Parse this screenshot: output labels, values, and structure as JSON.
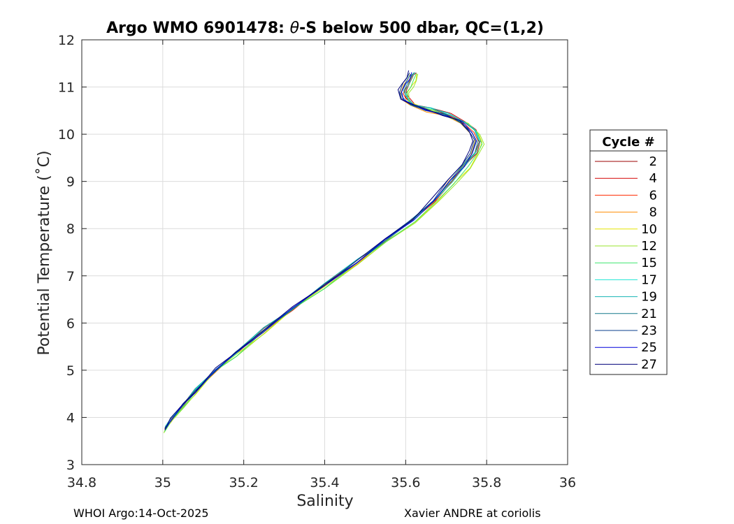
{
  "chart_data": {
    "type": "line",
    "title_prefix": "Argo WMO 6901478: ",
    "title_symbol": "θ",
    "title_suffix": "-S below 500 dbar,  QC=(1,2)",
    "xlabel": "Salinity",
    "ylabel": "Potential Temperature (˚C)",
    "xlim": [
      34.8,
      36
    ],
    "ylim": [
      3,
      12
    ],
    "xticks": [
      "34.8",
      "35",
      "35.2",
      "35.4",
      "35.6",
      "35.8",
      "36"
    ],
    "yticks": [
      "3",
      "4",
      "5",
      "6",
      "7",
      "8",
      "9",
      "10",
      "11",
      "12"
    ],
    "grid": true,
    "legend": {
      "title": "Cycle #",
      "placement": "outside-right"
    },
    "base_profile": [
      [
        35.005,
        3.75
      ],
      [
        35.02,
        3.95
      ],
      [
        35.05,
        4.25
      ],
      [
        35.08,
        4.55
      ],
      [
        35.13,
        5.0
      ],
      [
        35.18,
        5.35
      ],
      [
        35.25,
        5.85
      ],
      [
        35.32,
        6.3
      ],
      [
        35.4,
        6.8
      ],
      [
        35.48,
        7.3
      ],
      [
        35.55,
        7.75
      ],
      [
        35.62,
        8.2
      ],
      [
        35.67,
        8.6
      ],
      [
        35.71,
        9.0
      ],
      [
        35.745,
        9.35
      ],
      [
        35.765,
        9.6
      ],
      [
        35.775,
        9.85
      ],
      [
        35.765,
        10.05
      ],
      [
        35.74,
        10.25
      ],
      [
        35.7,
        10.4
      ],
      [
        35.655,
        10.52
      ],
      [
        35.615,
        10.62
      ],
      [
        35.595,
        10.75
      ],
      [
        35.59,
        10.9
      ],
      [
        35.6,
        11.05
      ],
      [
        35.61,
        11.2
      ],
      [
        35.615,
        11.3
      ]
    ],
    "series": [
      {
        "name": "2",
        "color": "#9b0000",
        "ds": 0.006,
        "dt": 0.02
      },
      {
        "name": "4",
        "color": "#d40000",
        "ds": 0.01,
        "dt": 0.05
      },
      {
        "name": "6",
        "color": "#ff2a00",
        "ds": 0.004,
        "dt": -0.02
      },
      {
        "name": "8",
        "color": "#ff8c00",
        "ds": -0.004,
        "dt": -0.04
      },
      {
        "name": "10",
        "color": "#e6e600",
        "ds": 0.014,
        "dt": -0.08
      },
      {
        "name": "12",
        "color": "#9ae62e",
        "ds": 0.017,
        "dt": -0.1
      },
      {
        "name": "15",
        "color": "#3ce66e",
        "ds": 0.012,
        "dt": -0.06
      },
      {
        "name": "17",
        "color": "#1ee6d2",
        "ds": 0.008,
        "dt": 0.03
      },
      {
        "name": "19",
        "color": "#14b4b4",
        "ds": 0.005,
        "dt": 0.06
      },
      {
        "name": "21",
        "color": "#14788c",
        "ds": -0.002,
        "dt": 0.0
      },
      {
        "name": "23",
        "color": "#0a3c8c",
        "ds": -0.006,
        "dt": 0.02
      },
      {
        "name": "25",
        "color": "#0000dc",
        "ds": 0.0,
        "dt": -0.01
      },
      {
        "name": "27",
        "color": "#00007a",
        "ds": -0.008,
        "dt": 0.04
      }
    ]
  },
  "footer": {
    "left": "WHOI Argo:14-Oct-2025",
    "right": "Xavier ANDRE at coriolis"
  }
}
